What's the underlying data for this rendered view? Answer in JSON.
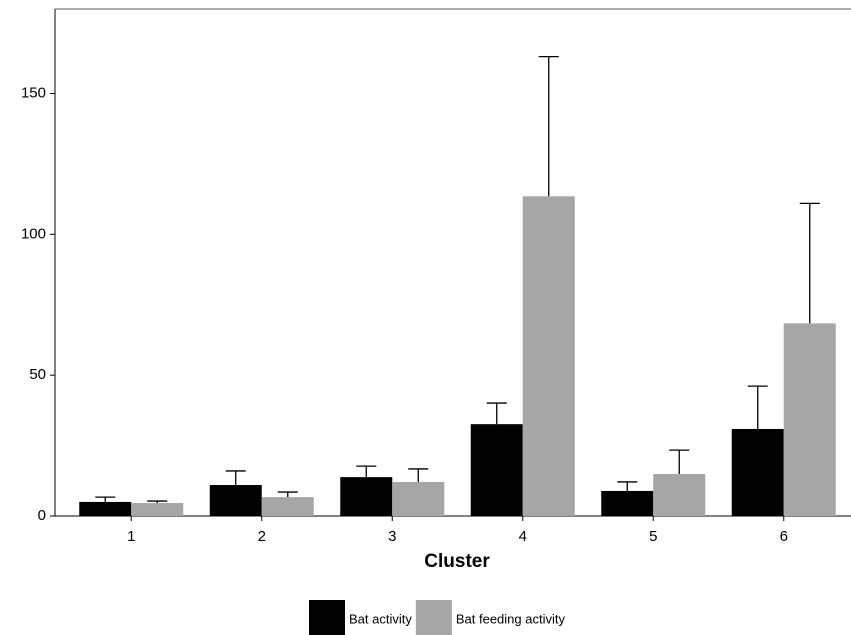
{
  "chart_data": {
    "type": "bar",
    "x_label": "Cluster",
    "categories": [
      "1",
      "2",
      "3",
      "4",
      "5",
      "6"
    ],
    "series": [
      {
        "name": "Bat activity",
        "color": "#000000",
        "values": [
          5.0,
          11.0,
          13.8,
          32.6,
          8.9,
          30.9
        ],
        "errors": [
          1.7,
          5.0,
          3.9,
          7.5,
          3.2,
          15.2
        ]
      },
      {
        "name": "Bat feeding activity",
        "color": "#a6a6a6",
        "values": [
          4.6,
          6.7,
          12.1,
          113.5,
          14.9,
          68.4
        ],
        "errors": [
          0.7,
          1.8,
          4.6,
          49.6,
          8.5,
          42.6
        ]
      }
    ],
    "ylim": [
      0,
      180
    ],
    "yticks": [
      0,
      50,
      100,
      150
    ],
    "legend": "bottom"
  }
}
